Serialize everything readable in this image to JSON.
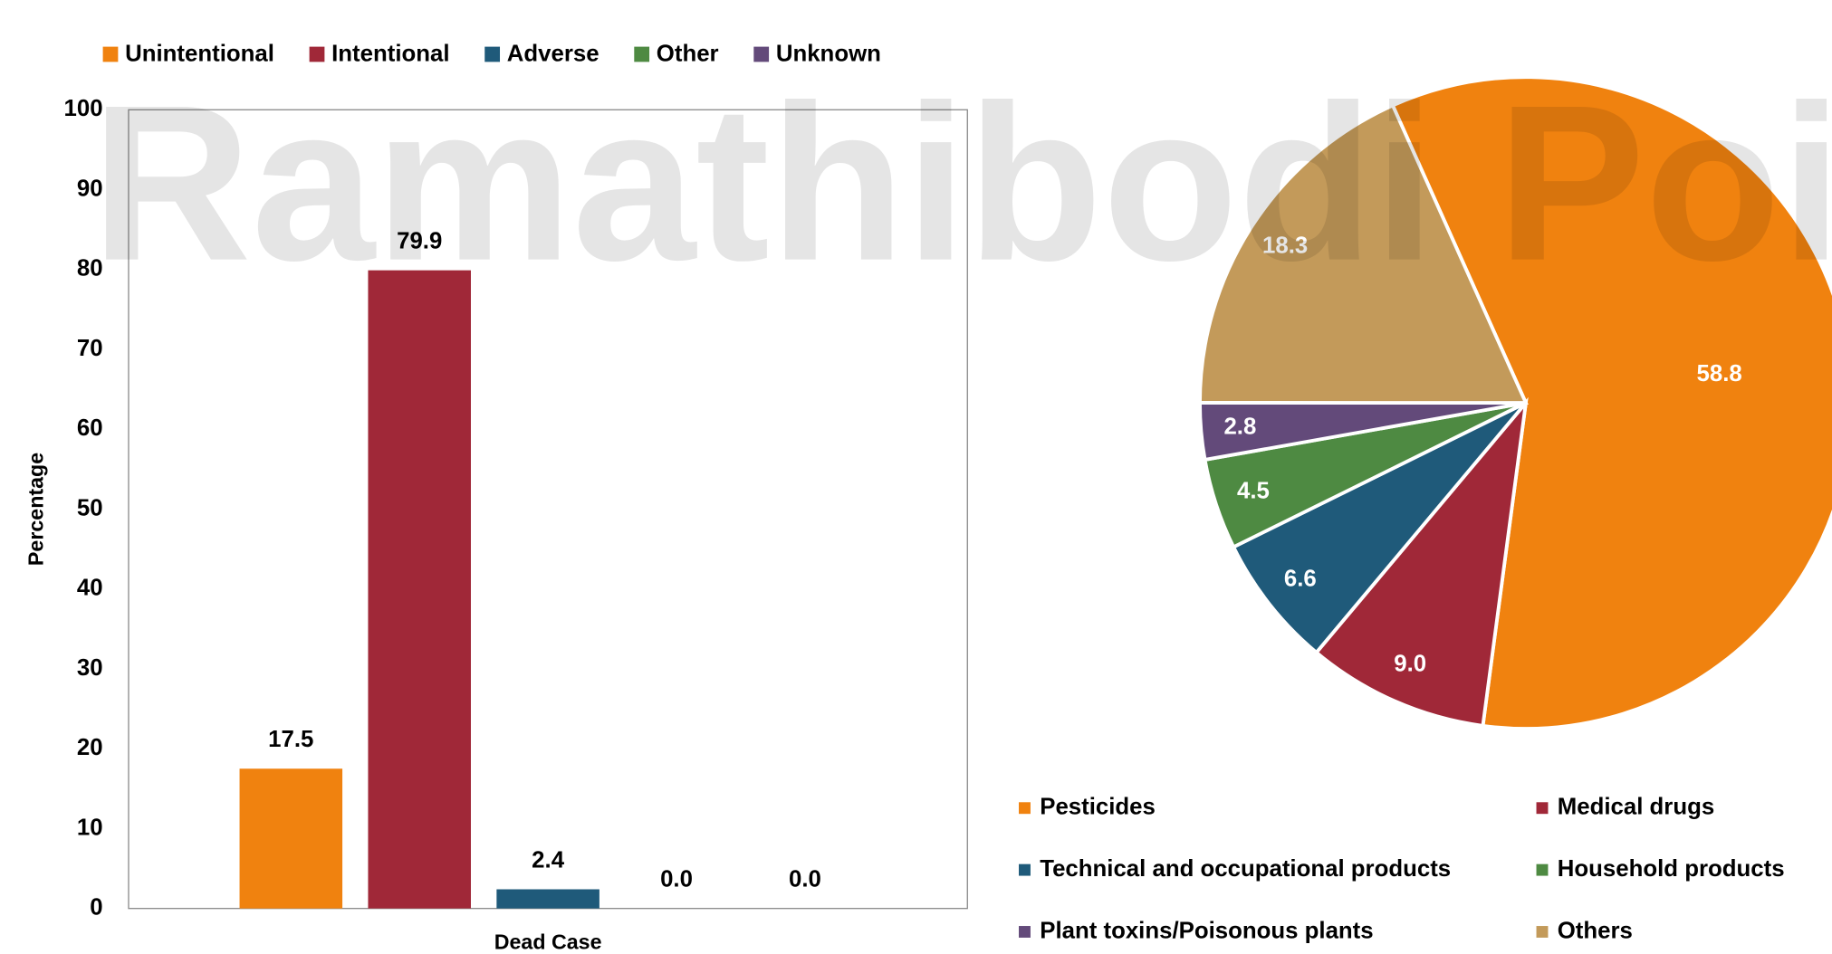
{
  "watermark": "Ramathibodi Pois",
  "chart_data": [
    {
      "type": "bar",
      "categories": [
        "Dead Case"
      ],
      "y_label": "Percentage",
      "ylim": [
        0,
        100
      ],
      "yticks": [
        0,
        10,
        20,
        30,
        40,
        50,
        60,
        70,
        80,
        90,
        100
      ],
      "grid": false,
      "legend": "top",
      "series": [
        {
          "name": "Unintentional",
          "color": "#f0820f",
          "values": [
            17.5
          ]
        },
        {
          "name": "Intentional",
          "color": "#a02838",
          "values": [
            79.9
          ]
        },
        {
          "name": "Adverse",
          "color": "#1f5a7a",
          "values": [
            2.4
          ]
        },
        {
          "name": "Other",
          "color": "#4e8a42",
          "values": [
            0
          ],
          "value_labels": [
            "0.0"
          ]
        },
        {
          "name": "Unknown",
          "color": "#634a7a",
          "values": [
            0
          ],
          "value_labels": [
            "0.0"
          ]
        }
      ]
    },
    {
      "type": "pie",
      "legend": "bottom",
      "categories": [
        "Pesticides",
        "Medical drugs",
        "Technical and occupational products",
        "Household products",
        "Plant toxins/Poisonous plants",
        "Others"
      ],
      "values": [
        58.8,
        9.0,
        6.6,
        4.5,
        2.8,
        18.3
      ],
      "value_labels": [
        "58.8",
        "9.0",
        "6.6",
        "4.5",
        "2.8",
        "18.3"
      ],
      "colors": [
        "#f0820f",
        "#a02838",
        "#1f5a7a",
        "#4e8a42",
        "#634a7a",
        "#c39a5a"
      ]
    }
  ]
}
